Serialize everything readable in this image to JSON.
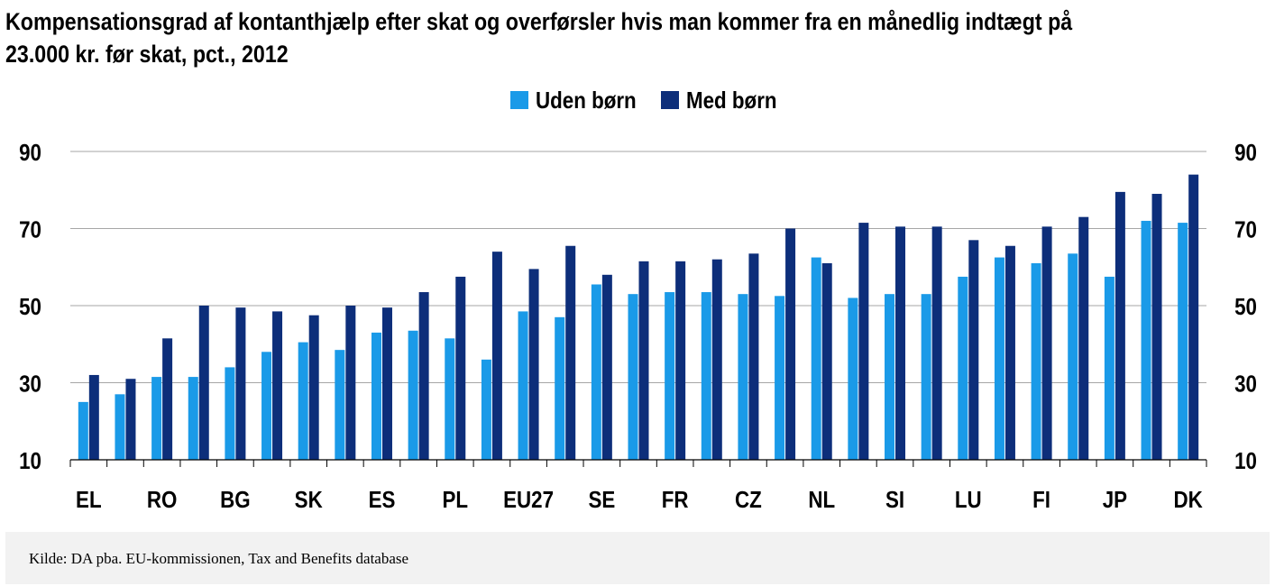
{
  "chart_data": {
    "type": "bar",
    "title": "Kompensationsgrad af kontanthjælp efter skat og overførsler hvis man kommer fra en månedlig indtægt på 23.000 kr. før skat, pct., 2012",
    "title_lines": [
      "Kompensationsgrad af kontanthjælp efter skat og overførsler hvis man kommer fra en månedlig indtægt på",
      "23.000 kr. før skat, pct., 2012"
    ],
    "xlabel": "",
    "ylabel": "",
    "ylim": [
      10,
      90
    ],
    "yticks": [
      10,
      30,
      50,
      70,
      90
    ],
    "grid": true,
    "legend_position": "top-center",
    "categories": [
      "EL",
      "",
      "RO",
      "",
      "BG",
      "",
      "SK",
      "",
      "ES",
      "",
      "PL",
      "",
      "EU27",
      "",
      "SE",
      "",
      "FR",
      "",
      "CZ",
      "",
      "NL",
      "",
      "SI",
      "",
      "LU",
      "",
      "FI",
      "",
      "JP",
      "",
      "DK"
    ],
    "series": [
      {
        "name": "Uden børn",
        "color": "#1a9ae8",
        "values": [
          25,
          27,
          31.5,
          31.5,
          34,
          38,
          40.5,
          38.5,
          43,
          43.5,
          41.5,
          36,
          48.5,
          47,
          55.5,
          53,
          53.5,
          53.5,
          53,
          52.5,
          62.5,
          52,
          53,
          53,
          57.5,
          62.5,
          61,
          63.5,
          57.5,
          72,
          71.5
        ]
      },
      {
        "name": "Med børn",
        "color": "#0d2e7a",
        "values": [
          32,
          31,
          41.5,
          50,
          49.5,
          48.5,
          47.5,
          50,
          49.5,
          53.5,
          57.5,
          64,
          59.5,
          65.5,
          58,
          61.5,
          61.5,
          62,
          63.5,
          70,
          61,
          71.5,
          70.5,
          70.5,
          67,
          65.5,
          70.5,
          73,
          79.5,
          79,
          84
        ]
      }
    ]
  },
  "source": "Kilde: DA pba. EU-kommissionen, Tax and Benefits database"
}
